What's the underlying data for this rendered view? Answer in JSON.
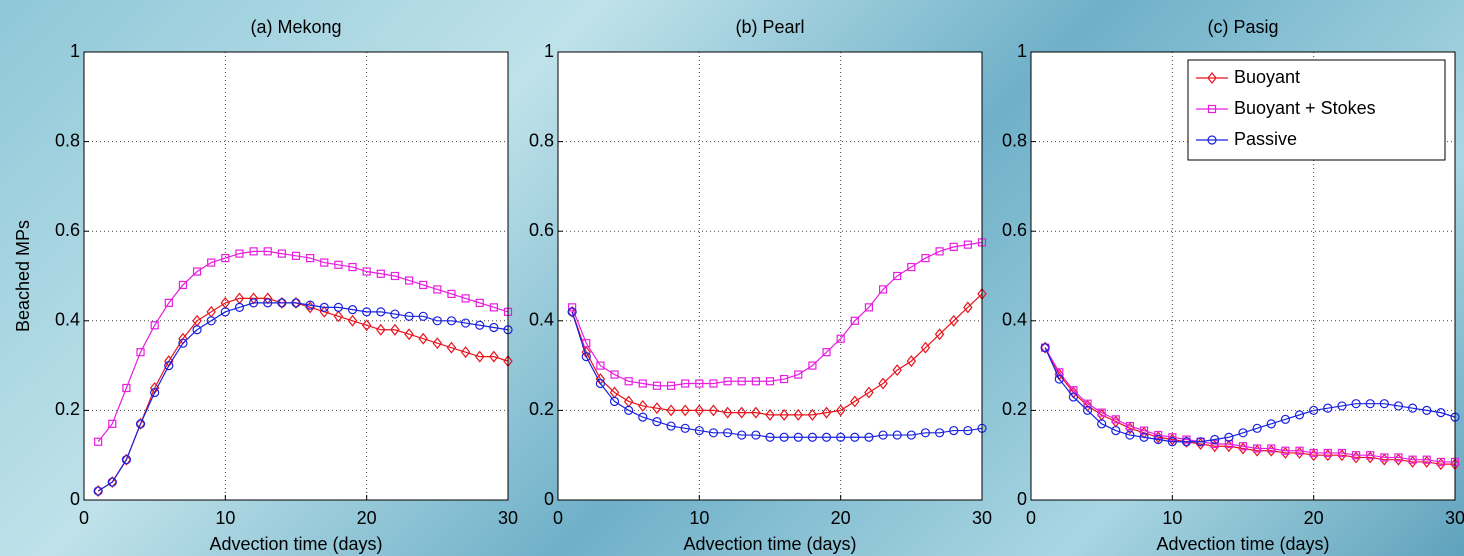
{
  "chart_data": [
    {
      "type": "line",
      "title": "(a) Mekong",
      "x_label": "Advection time (days)",
      "y_label": "Beached MPs",
      "x": [
        1,
        2,
        3,
        4,
        5,
        6,
        7,
        8,
        9,
        10,
        11,
        12,
        13,
        14,
        15,
        16,
        17,
        18,
        19,
        20,
        21,
        22,
        23,
        24,
        25,
        26,
        27,
        28,
        29,
        30
      ],
      "xlim": [
        0,
        30
      ],
      "xticks": [
        0,
        10,
        20,
        30
      ],
      "ylim": [
        0,
        1
      ],
      "yticks": [
        0,
        0.2,
        0.4,
        0.6,
        0.8,
        1
      ],
      "grid": true,
      "series": [
        {
          "name": "Buoyant",
          "color": "#e8141c",
          "marker": "diamond",
          "values": [
            0.02,
            0.04,
            0.09,
            0.17,
            0.25,
            0.31,
            0.36,
            0.4,
            0.42,
            0.44,
            0.45,
            0.45,
            0.45,
            0.44,
            0.44,
            0.43,
            0.42,
            0.41,
            0.4,
            0.39,
            0.38,
            0.38,
            0.37,
            0.36,
            0.35,
            0.34,
            0.33,
            0.32,
            0.32,
            0.31
          ]
        },
        {
          "name": "Buoyant + Stokes",
          "color": "#e81ee0",
          "marker": "square",
          "values": [
            0.13,
            0.17,
            0.25,
            0.33,
            0.39,
            0.44,
            0.48,
            0.51,
            0.53,
            0.54,
            0.55,
            0.555,
            0.555,
            0.55,
            0.545,
            0.54,
            0.53,
            0.525,
            0.52,
            0.51,
            0.505,
            0.5,
            0.49,
            0.48,
            0.47,
            0.46,
            0.45,
            0.44,
            0.43,
            0.42
          ]
        },
        {
          "name": "Passive",
          "color": "#1a22e0",
          "marker": "circle",
          "values": [
            0.02,
            0.04,
            0.09,
            0.17,
            0.24,
            0.3,
            0.35,
            0.38,
            0.4,
            0.42,
            0.43,
            0.44,
            0.44,
            0.44,
            0.44,
            0.435,
            0.43,
            0.43,
            0.425,
            0.42,
            0.42,
            0.415,
            0.41,
            0.41,
            0.4,
            0.4,
            0.395,
            0.39,
            0.385,
            0.38
          ]
        }
      ]
    },
    {
      "type": "line",
      "title": "(b) Pearl",
      "x_label": "Advection time (days)",
      "x": [
        1,
        2,
        3,
        4,
        5,
        6,
        7,
        8,
        9,
        10,
        11,
        12,
        13,
        14,
        15,
        16,
        17,
        18,
        19,
        20,
        21,
        22,
        23,
        24,
        25,
        26,
        27,
        28,
        29,
        30
      ],
      "xlim": [
        0,
        30
      ],
      "xticks": [
        0,
        10,
        20,
        30
      ],
      "ylim": [
        0,
        1
      ],
      "yticks": [
        0,
        0.2,
        0.4,
        0.6,
        0.8,
        1
      ],
      "grid": true,
      "series": [
        {
          "name": "Buoyant",
          "color": "#e8141c",
          "marker": "diamond",
          "values": [
            0.42,
            0.33,
            0.27,
            0.24,
            0.22,
            0.21,
            0.205,
            0.2,
            0.2,
            0.2,
            0.2,
            0.195,
            0.195,
            0.195,
            0.19,
            0.19,
            0.19,
            0.19,
            0.195,
            0.2,
            0.22,
            0.24,
            0.26,
            0.29,
            0.31,
            0.34,
            0.37,
            0.4,
            0.43,
            0.46
          ]
        },
        {
          "name": "Buoyant + Stokes",
          "color": "#e81ee0",
          "marker": "square",
          "values": [
            0.43,
            0.35,
            0.3,
            0.28,
            0.265,
            0.26,
            0.255,
            0.255,
            0.26,
            0.26,
            0.26,
            0.265,
            0.265,
            0.265,
            0.265,
            0.27,
            0.28,
            0.3,
            0.33,
            0.36,
            0.4,
            0.43,
            0.47,
            0.5,
            0.52,
            0.54,
            0.555,
            0.565,
            0.57,
            0.575
          ]
        },
        {
          "name": "Passive",
          "color": "#1a22e0",
          "marker": "circle",
          "values": [
            0.42,
            0.32,
            0.26,
            0.22,
            0.2,
            0.185,
            0.175,
            0.165,
            0.16,
            0.155,
            0.15,
            0.15,
            0.145,
            0.145,
            0.14,
            0.14,
            0.14,
            0.14,
            0.14,
            0.14,
            0.14,
            0.14,
            0.145,
            0.145,
            0.145,
            0.15,
            0.15,
            0.155,
            0.155,
            0.16
          ]
        }
      ]
    },
    {
      "type": "line",
      "title": "(c) Pasig",
      "x_label": "Advection time (days)",
      "legend": "upper right",
      "x": [
        1,
        2,
        3,
        4,
        5,
        6,
        7,
        8,
        9,
        10,
        11,
        12,
        13,
        14,
        15,
        16,
        17,
        18,
        19,
        20,
        21,
        22,
        23,
        24,
        25,
        26,
        27,
        28,
        29,
        30
      ],
      "xlim": [
        0,
        30
      ],
      "xticks": [
        0,
        10,
        20,
        30
      ],
      "ylim": [
        0,
        1
      ],
      "yticks": [
        0,
        0.2,
        0.4,
        0.6,
        0.8,
        1
      ],
      "grid": true,
      "series": [
        {
          "name": "Buoyant",
          "color": "#e8141c",
          "marker": "diamond",
          "values": [
            0.34,
            0.28,
            0.24,
            0.21,
            0.19,
            0.175,
            0.16,
            0.15,
            0.14,
            0.135,
            0.13,
            0.125,
            0.12,
            0.12,
            0.115,
            0.11,
            0.11,
            0.105,
            0.105,
            0.1,
            0.1,
            0.1,
            0.095,
            0.095,
            0.09,
            0.09,
            0.085,
            0.085,
            0.08,
            0.08
          ]
        },
        {
          "name": "Buoyant + Stokes",
          "color": "#e81ee0",
          "marker": "square",
          "values": [
            0.34,
            0.285,
            0.245,
            0.215,
            0.195,
            0.18,
            0.165,
            0.155,
            0.145,
            0.14,
            0.135,
            0.13,
            0.125,
            0.125,
            0.12,
            0.115,
            0.115,
            0.11,
            0.11,
            0.105,
            0.105,
            0.105,
            0.1,
            0.1,
            0.095,
            0.095,
            0.09,
            0.09,
            0.085,
            0.085
          ]
        },
        {
          "name": "Passive",
          "color": "#1a22e0",
          "marker": "circle",
          "values": [
            0.34,
            0.27,
            0.23,
            0.2,
            0.17,
            0.155,
            0.145,
            0.14,
            0.135,
            0.13,
            0.13,
            0.13,
            0.135,
            0.14,
            0.15,
            0.16,
            0.17,
            0.18,
            0.19,
            0.2,
            0.205,
            0.21,
            0.215,
            0.215,
            0.215,
            0.21,
            0.205,
            0.2,
            0.195,
            0.185
          ]
        }
      ]
    }
  ]
}
